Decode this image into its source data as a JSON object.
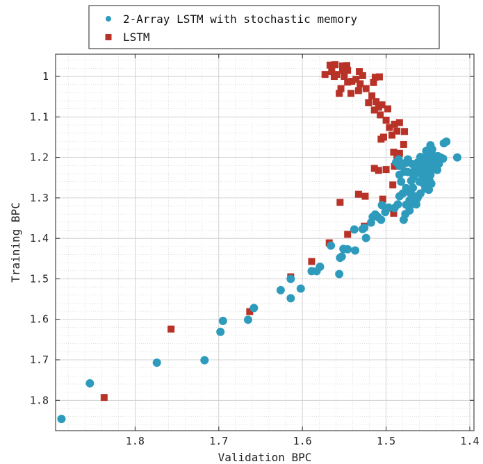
{
  "chart_data": {
    "type": "scatter",
    "xlabel": "Validation BPC",
    "ylabel": "Training BPC",
    "xlim": [
      1.895,
      1.395
    ],
    "ylim": [
      1.875,
      0.945
    ],
    "x_reversed": true,
    "y_reversed": true,
    "grid": true,
    "minor_grid": true,
    "legend_placement": "top-center-outside",
    "x_ticks": [
      1.8,
      1.7,
      1.6,
      1.5,
      1.4
    ],
    "x_tick_labels": [
      "1.8",
      "1.7",
      "1.6",
      "1.5",
      "1.4"
    ],
    "y_ticks": [
      1.0,
      1.1,
      1.2,
      1.3,
      1.4,
      1.5,
      1.6,
      1.7,
      1.8
    ],
    "y_tick_labels": [
      "1",
      "1.1",
      "1.2",
      "1.3",
      "1.4",
      "1.5",
      "1.6",
      "1.7",
      "1.8"
    ],
    "series": [
      {
        "name": "2-Array LSTM with stochastic memory",
        "marker": "circle",
        "color": "#2e9bbd",
        "points": [
          [
            1.888,
            1.846
          ],
          [
            1.854,
            1.758
          ],
          [
            1.774,
            1.707
          ],
          [
            1.717,
            1.701
          ],
          [
            1.698,
            1.631
          ],
          [
            1.695,
            1.604
          ],
          [
            1.665,
            1.601
          ],
          [
            1.658,
            1.572
          ],
          [
            1.626,
            1.528
          ],
          [
            1.614,
            1.548
          ],
          [
            1.614,
            1.5
          ],
          [
            1.602,
            1.524
          ],
          [
            1.589,
            1.481
          ],
          [
            1.583,
            1.481
          ],
          [
            1.579,
            1.47
          ],
          [
            1.566,
            1.418
          ],
          [
            1.556,
            1.488
          ],
          [
            1.555,
            1.448
          ],
          [
            1.553,
            1.445
          ],
          [
            1.551,
            1.426
          ],
          [
            1.546,
            1.427
          ],
          [
            1.537,
            1.43
          ],
          [
            1.538,
            1.378
          ],
          [
            1.528,
            1.377
          ],
          [
            1.524,
            1.399
          ],
          [
            1.526,
            1.374
          ],
          [
            1.518,
            1.361
          ],
          [
            1.516,
            1.347
          ],
          [
            1.513,
            1.341
          ],
          [
            1.51,
            1.347
          ],
          [
            1.506,
            1.354
          ],
          [
            1.505,
            1.318
          ],
          [
            1.501,
            1.335
          ],
          [
            1.497,
            1.324
          ],
          [
            1.49,
            1.325
          ],
          [
            1.486,
            1.316
          ],
          [
            1.484,
            1.296
          ],
          [
            1.48,
            1.289
          ],
          [
            1.477,
            1.34
          ],
          [
            1.479,
            1.354
          ],
          [
            1.476,
            1.317
          ],
          [
            1.476,
            1.276
          ],
          [
            1.472,
            1.306
          ],
          [
            1.471,
            1.288
          ],
          [
            1.468,
            1.275
          ],
          [
            1.469,
            1.315
          ],
          [
            1.464,
            1.316
          ],
          [
            1.462,
            1.298
          ],
          [
            1.467,
            1.247
          ],
          [
            1.466,
            1.232
          ],
          [
            1.46,
            1.26
          ],
          [
            1.461,
            1.235
          ],
          [
            1.46,
            1.217
          ],
          [
            1.456,
            1.235
          ],
          [
            1.456,
            1.21
          ],
          [
            1.454,
            1.225
          ],
          [
            1.452,
            1.198
          ],
          [
            1.452,
            1.184
          ],
          [
            1.449,
            1.212
          ],
          [
            1.45,
            1.232
          ],
          [
            1.449,
            1.28
          ],
          [
            1.448,
            1.258
          ],
          [
            1.447,
            1.243
          ],
          [
            1.445,
            1.222
          ],
          [
            1.444,
            1.195
          ],
          [
            1.447,
            1.17
          ],
          [
            1.442,
            1.205
          ],
          [
            1.44,
            1.215
          ],
          [
            1.438,
            1.197
          ],
          [
            1.435,
            1.2
          ],
          [
            1.432,
            1.203
          ],
          [
            1.431,
            1.165
          ],
          [
            1.428,
            1.161
          ],
          [
            1.415,
            1.2
          ],
          [
            1.478,
            1.235
          ],
          [
            1.484,
            1.243
          ],
          [
            1.484,
            1.221
          ],
          [
            1.485,
            1.205
          ],
          [
            1.488,
            1.212
          ],
          [
            1.482,
            1.26
          ],
          [
            1.474,
            1.236
          ],
          [
            1.47,
            1.258
          ],
          [
            1.463,
            1.302
          ],
          [
            1.459,
            1.289
          ],
          [
            1.453,
            1.277
          ],
          [
            1.455,
            1.265
          ],
          [
            1.443,
            1.226
          ],
          [
            1.439,
            1.231
          ],
          [
            1.446,
            1.265
          ],
          [
            1.452,
            1.248
          ],
          [
            1.457,
            1.245
          ],
          [
            1.458,
            1.227
          ],
          [
            1.469,
            1.216
          ],
          [
            1.474,
            1.205
          ],
          [
            1.477,
            1.214
          ],
          [
            1.462,
            1.212
          ],
          [
            1.459,
            1.199
          ],
          [
            1.445,
            1.18
          ],
          [
            1.437,
            1.216
          ],
          [
            1.466,
            1.296
          ],
          [
            1.472,
            1.331
          ],
          [
            1.465,
            1.3
          ]
        ]
      },
      {
        "name": "LSTM",
        "marker": "square",
        "color": "#b83227",
        "points": [
          [
            1.837,
            1.793
          ],
          [
            1.757,
            1.624
          ],
          [
            1.663,
            1.581
          ],
          [
            1.614,
            1.495
          ],
          [
            1.589,
            1.457
          ],
          [
            1.568,
            1.411
          ],
          [
            1.555,
            1.311
          ],
          [
            1.546,
            1.39
          ],
          [
            1.533,
            1.291
          ],
          [
            1.525,
            1.296
          ],
          [
            1.526,
            1.37
          ],
          [
            1.514,
            1.227
          ],
          [
            1.509,
            1.232
          ],
          [
            1.504,
            1.303
          ],
          [
            1.491,
            1.338
          ],
          [
            1.492,
            1.268
          ],
          [
            1.49,
            1.222
          ],
          [
            1.491,
            1.187
          ],
          [
            1.487,
            1.198
          ],
          [
            1.484,
            1.19
          ],
          [
            1.481,
            1.216
          ],
          [
            1.479,
            1.168
          ],
          [
            1.478,
            1.136
          ],
          [
            1.484,
            1.114
          ],
          [
            1.487,
            1.135
          ],
          [
            1.49,
            1.118
          ],
          [
            1.493,
            1.145
          ],
          [
            1.496,
            1.126
          ],
          [
            1.498,
            1.08
          ],
          [
            1.5,
            1.108
          ],
          [
            1.503,
            1.15
          ],
          [
            1.506,
            1.155
          ],
          [
            1.505,
            1.07
          ],
          [
            1.507,
            1.095
          ],
          [
            1.509,
            1.076
          ],
          [
            1.512,
            1.062
          ],
          [
            1.514,
            1.083
          ],
          [
            1.517,
            1.048
          ],
          [
            1.521,
            1.065
          ],
          [
            1.524,
            1.03
          ],
          [
            1.528,
            0.998
          ],
          [
            1.531,
            1.018
          ],
          [
            1.533,
            1.035
          ],
          [
            1.536,
            1.007
          ],
          [
            1.541,
            1.012
          ],
          [
            1.542,
            1.042
          ],
          [
            1.546,
            1.014
          ],
          [
            1.547,
            0.973
          ],
          [
            1.55,
            1.0
          ],
          [
            1.552,
            0.985
          ],
          [
            1.554,
            1.03
          ],
          [
            1.556,
            1.042
          ],
          [
            1.559,
            0.995
          ],
          [
            1.561,
            0.971
          ],
          [
            1.565,
            0.988
          ],
          [
            1.567,
            0.972
          ],
          [
            1.573,
            0.995
          ],
          [
            1.532,
            0.988
          ],
          [
            1.515,
            1.015
          ],
          [
            1.513,
            1.002
          ],
          [
            1.508,
            1.001
          ],
          [
            1.546,
            0.985
          ],
          [
            1.552,
            0.974
          ],
          [
            1.562,
            1.0
          ],
          [
            1.5,
            1.23
          ]
        ]
      }
    ]
  }
}
